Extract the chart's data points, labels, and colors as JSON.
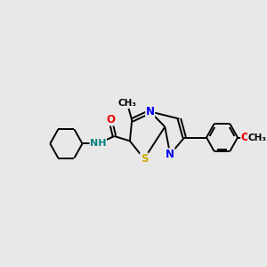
{
  "bg_color": "#e8e8e8",
  "bond_color": "#000000",
  "bond_lw": 1.4,
  "atom_colors": {
    "N": "#0000ee",
    "S": "#ccaa00",
    "O": "#ee0000",
    "NH": "#008080",
    "C": "#000000"
  },
  "font_size": 8.5,
  "fig_bg": "#e8e8e8"
}
